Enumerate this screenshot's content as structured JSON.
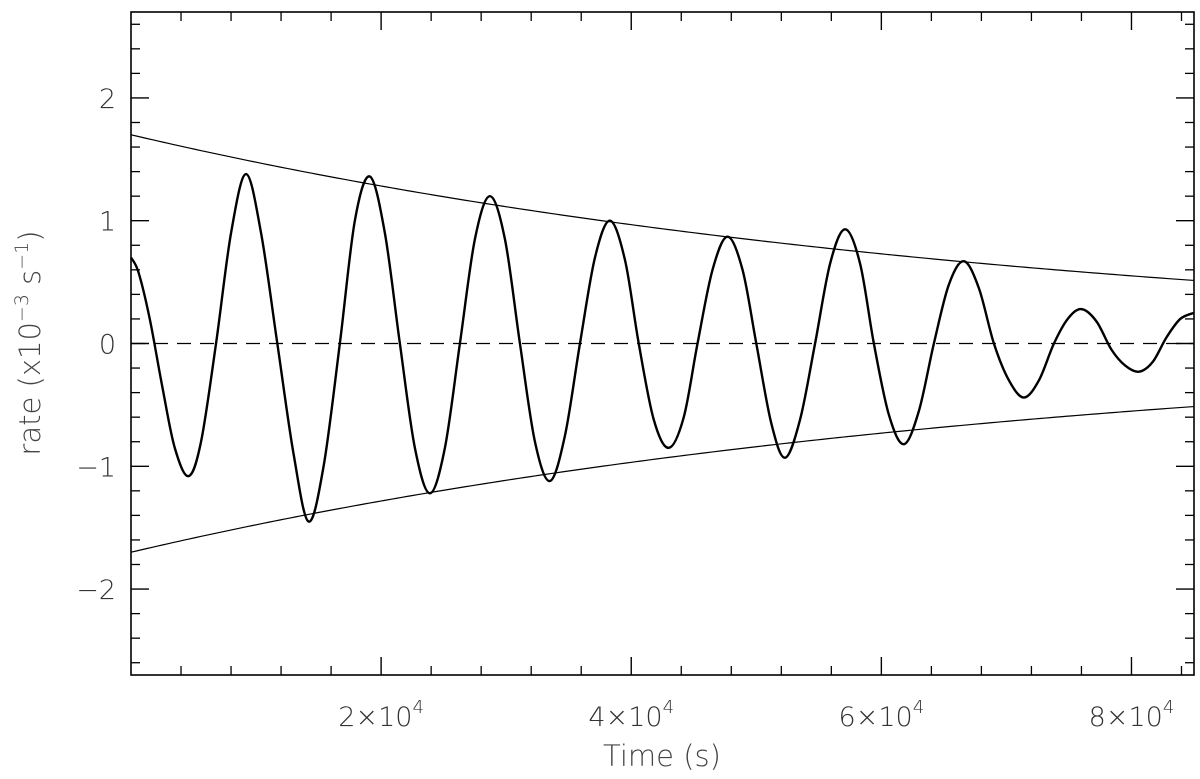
{
  "chart_data": {
    "type": "line",
    "title": "",
    "xlabel": "Time (s)",
    "ylabel_parts": [
      "rate (x10",
      "−3",
      " s",
      "−1",
      ")"
    ],
    "xlim": [
      0,
      85000
    ],
    "ylim": [
      -2.7,
      2.7
    ],
    "x_ticks": [
      {
        "value": 20000,
        "mantissa": "2×10",
        "exp": "4"
      },
      {
        "value": 40000,
        "mantissa": "4×10",
        "exp": "4"
      },
      {
        "value": 60000,
        "mantissa": "6×10",
        "exp": "4"
      },
      {
        "value": 80000,
        "mantissa": "8×10",
        "exp": "4"
      }
    ],
    "y_ticks": [
      {
        "value": -2,
        "label": "−2"
      },
      {
        "value": -1,
        "label": "−1"
      },
      {
        "value": 0,
        "label": "0"
      },
      {
        "value": 1,
        "label": "1"
      },
      {
        "value": 2,
        "label": "2"
      }
    ],
    "x_minor_step": 4000,
    "y_minor_step": 0.2,
    "zero_line": {
      "y": 0,
      "style": "dashed"
    },
    "series": [
      {
        "style": "solid-thick",
        "description_points": [
          [
            0,
            0.7
          ],
          [
            600,
            0.58
          ],
          [
            1500,
            0.2
          ],
          [
            2500,
            -0.35
          ],
          [
            3500,
            -0.85
          ],
          [
            4600,
            -1.08
          ],
          [
            5600,
            -0.8
          ],
          [
            6800,
            0.0
          ],
          [
            8000,
            0.9
          ],
          [
            9200,
            1.38
          ],
          [
            10400,
            0.9
          ],
          [
            11700,
            0.0
          ],
          [
            13000,
            -0.9
          ],
          [
            14200,
            -1.45
          ],
          [
            15400,
            -1.0
          ],
          [
            16700,
            0.0
          ],
          [
            17900,
            1.0
          ],
          [
            19100,
            1.36
          ],
          [
            20300,
            0.9
          ],
          [
            21500,
            0.0
          ],
          [
            22700,
            -0.85
          ],
          [
            23900,
            -1.22
          ],
          [
            25100,
            -0.85
          ],
          [
            26300,
            0.0
          ],
          [
            27500,
            0.85
          ],
          [
            28700,
            1.2
          ],
          [
            29900,
            0.85
          ],
          [
            31100,
            0.0
          ],
          [
            32300,
            -0.8
          ],
          [
            33500,
            -1.12
          ],
          [
            34700,
            -0.75
          ],
          [
            35900,
            0.0
          ],
          [
            37100,
            0.7
          ],
          [
            38300,
            1.0
          ],
          [
            39500,
            0.68
          ],
          [
            40600,
            0.0
          ],
          [
            41800,
            -0.62
          ],
          [
            43000,
            -0.85
          ],
          [
            44200,
            -0.6
          ],
          [
            45300,
            0.0
          ],
          [
            46500,
            0.6
          ],
          [
            47700,
            0.87
          ],
          [
            48900,
            0.6
          ],
          [
            50000,
            0.0
          ],
          [
            51200,
            -0.65
          ],
          [
            52300,
            -0.93
          ],
          [
            53500,
            -0.62
          ],
          [
            54700,
            0.0
          ],
          [
            55900,
            0.65
          ],
          [
            57100,
            0.93
          ],
          [
            58300,
            0.65
          ],
          [
            59400,
            0.0
          ],
          [
            60600,
            -0.58
          ],
          [
            61800,
            -0.82
          ],
          [
            63000,
            -0.55
          ],
          [
            64200,
            0.0
          ],
          [
            65400,
            0.48
          ],
          [
            66600,
            0.67
          ],
          [
            67800,
            0.45
          ],
          [
            69000,
            0.0
          ],
          [
            70200,
            -0.3
          ],
          [
            71400,
            -0.44
          ],
          [
            72600,
            -0.3
          ],
          [
            73800,
            0.0
          ],
          [
            74900,
            0.2
          ],
          [
            76000,
            0.28
          ],
          [
            77200,
            0.18
          ],
          [
            78400,
            -0.05
          ],
          [
            79500,
            -0.18
          ],
          [
            80600,
            -0.23
          ],
          [
            81700,
            -0.15
          ],
          [
            82800,
            0.05
          ],
          [
            83900,
            0.2
          ],
          [
            85000,
            0.25
          ]
        ]
      },
      {
        "style": "solid-thin",
        "function": "exp-decay",
        "amplitude": 1.7,
        "tau": 71000,
        "sign": 1
      },
      {
        "style": "solid-thin",
        "function": "exp-decay",
        "amplitude": 1.7,
        "tau": 71000,
        "sign": -1
      }
    ]
  }
}
